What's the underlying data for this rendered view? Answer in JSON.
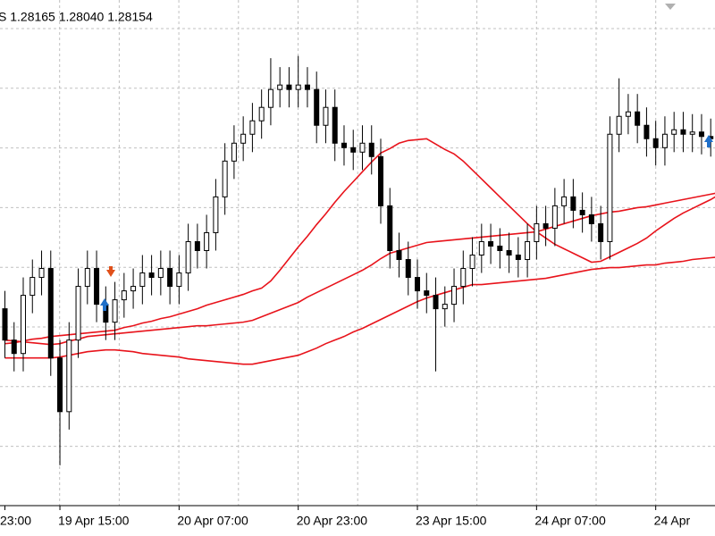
{
  "chart_data": {
    "type": "candlestick",
    "header": "S 1.28165 1.28040 1.28154",
    "ylim": [
      1.2652,
      1.2878
    ],
    "up_color": "#ffffff",
    "down_color": "#000000",
    "outline_color": "#000000",
    "categories": [
      "23:00",
      null,
      null,
      null,
      null,
      null,
      "19 Apr 15:00",
      null,
      null,
      null,
      null,
      null,
      null,
      null,
      null,
      null,
      null,
      null,
      null,
      "20 Apr 07:00",
      null,
      null,
      null,
      null,
      null,
      null,
      null,
      null,
      null,
      null,
      null,
      null,
      "20 Apr 23:00",
      null,
      null,
      null,
      null,
      null,
      null,
      null,
      null,
      null,
      null,
      null,
      null,
      "23 Apr 15:00",
      null,
      null,
      null,
      null,
      null,
      null,
      null,
      null,
      null,
      null,
      null,
      null,
      "24 Apr 07:00",
      null,
      null,
      null,
      null,
      null,
      null,
      null,
      null,
      null,
      null,
      null,
      null,
      "24 Apr",
      null,
      null,
      null,
      null,
      null,
      null,
      null,
      null
    ],
    "open": [
      1.274,
      1.2726,
      1.272,
      1.2746,
      1.2754,
      1.2758,
      1.2718,
      1.2694,
      1.2726,
      1.275,
      1.2758,
      1.2742,
      1.2734,
      1.2744,
      1.2748,
      1.275,
      1.2756,
      1.2754,
      1.2758,
      1.275,
      1.2756,
      1.277,
      1.2766,
      1.2774,
      1.279,
      1.2806,
      1.2814,
      1.2818,
      1.2824,
      1.283,
      1.2838,
      1.284,
      1.2838,
      1.284,
      1.2838,
      1.2822,
      1.283,
      1.2814,
      1.2812,
      1.281,
      1.2814,
      1.2808,
      1.2786,
      1.2766,
      1.2762,
      1.2754,
      1.2748,
      1.2746,
      1.274,
      1.2742,
      1.275,
      1.2758,
      1.2764,
      1.277,
      1.2768,
      1.2766,
      1.2764,
      1.2762,
      1.277,
      1.2778,
      1.2776,
      1.2786,
      1.279,
      1.2784,
      1.2782,
      1.2778,
      1.277,
      1.2818,
      1.2826,
      1.2828,
      1.2822,
      1.2816,
      1.2812,
      1.2818,
      1.282,
      1.2818,
      1.2819,
      1.2817,
      1.2816,
      1.2818
    ],
    "high": [
      1.2748,
      1.2734,
      1.2754,
      1.2762,
      1.2766,
      1.2766,
      1.2726,
      1.2734,
      1.2758,
      1.2766,
      1.2766,
      1.275,
      1.2752,
      1.2756,
      1.2758,
      1.2764,
      1.2764,
      1.2766,
      1.2766,
      1.2764,
      1.2778,
      1.2778,
      1.2782,
      1.2798,
      1.2814,
      1.2822,
      1.2826,
      1.2832,
      1.2838,
      1.2852,
      1.2848,
      1.2848,
      1.2853,
      1.2848,
      1.2846,
      1.2838,
      1.2838,
      1.2822,
      1.282,
      1.2822,
      1.2822,
      1.2816,
      1.2794,
      1.2774,
      1.277,
      1.2762,
      1.2756,
      1.2754,
      1.275,
      1.2758,
      1.2766,
      1.2772,
      1.2778,
      1.2778,
      1.2776,
      1.2774,
      1.2772,
      1.2778,
      1.2786,
      1.2786,
      1.2794,
      1.2798,
      1.2798,
      1.2792,
      1.279,
      1.2786,
      1.2826,
      1.2843,
      1.2836,
      1.2836,
      1.283,
      1.2824,
      1.2826,
      1.2828,
      1.2828,
      1.2827,
      1.2827,
      1.2825,
      1.2826,
      1.28165
    ],
    "low": [
      1.2718,
      1.2712,
      1.2712,
      1.2738,
      1.2746,
      1.271,
      1.267,
      1.2686,
      1.2718,
      1.2742,
      1.2734,
      1.2726,
      1.2726,
      1.2736,
      1.274,
      1.2742,
      1.2746,
      1.2746,
      1.2742,
      1.2742,
      1.2748,
      1.2758,
      1.2758,
      1.2766,
      1.2782,
      1.2798,
      1.2806,
      1.281,
      1.2816,
      1.2822,
      1.283,
      1.283,
      1.283,
      1.283,
      1.2814,
      1.2814,
      1.2806,
      1.2804,
      1.2802,
      1.2802,
      1.28,
      1.2778,
      1.2758,
      1.2754,
      1.2746,
      1.274,
      1.2738,
      1.2712,
      1.2732,
      1.2734,
      1.2742,
      1.275,
      1.2756,
      1.276,
      1.2758,
      1.2756,
      1.2754,
      1.2754,
      1.2762,
      1.2768,
      1.2768,
      1.2778,
      1.2776,
      1.2774,
      1.277,
      1.2762,
      1.2762,
      1.281,
      1.2818,
      1.2814,
      1.2808,
      1.2804,
      1.2804,
      1.281,
      1.281,
      1.281,
      1.2809,
      1.2808,
      1.2808,
      1.2804
    ],
    "close": [
      1.2726,
      1.272,
      1.2746,
      1.2754,
      1.2758,
      1.2718,
      1.2694,
      1.2726,
      1.275,
      1.2758,
      1.2742,
      1.2734,
      1.2744,
      1.2748,
      1.275,
      1.2756,
      1.2754,
      1.2758,
      1.275,
      1.2756,
      1.277,
      1.2766,
      1.2774,
      1.279,
      1.2806,
      1.2814,
      1.2818,
      1.2824,
      1.283,
      1.2838,
      1.284,
      1.2838,
      1.284,
      1.2838,
      1.2822,
      1.283,
      1.2814,
      1.2812,
      1.281,
      1.2814,
      1.2808,
      1.2786,
      1.2766,
      1.2762,
      1.2754,
      1.2748,
      1.2746,
      1.274,
      1.2742,
      1.275,
      1.2758,
      1.2764,
      1.277,
      1.2768,
      1.2766,
      1.2764,
      1.2762,
      1.277,
      1.2778,
      1.2776,
      1.2786,
      1.279,
      1.2784,
      1.2782,
      1.2778,
      1.277,
      1.2818,
      1.2826,
      1.2828,
      1.2822,
      1.2816,
      1.2812,
      1.2818,
      1.282,
      1.2818,
      1.2819,
      1.2817,
      1.2816,
      1.2818,
      1.28154
    ],
    "lines": [
      {
        "color": "#e8131b",
        "values": [
          1.27244,
          1.27248,
          1.27256,
          1.27264,
          1.27268,
          1.27276,
          1.2728,
          1.27284,
          1.27288,
          1.27292,
          1.27296,
          1.273,
          1.27304,
          1.27316,
          1.27324,
          1.27336,
          1.27344,
          1.27356,
          1.27364,
          1.27376,
          1.27388,
          1.274,
          1.27416,
          1.27428,
          1.2744,
          1.27452,
          1.27464,
          1.2748,
          1.27492,
          1.27524,
          1.27572,
          1.27624,
          1.27676,
          1.27724,
          1.27776,
          1.27824,
          1.27876,
          1.27924,
          1.27968,
          1.28012,
          1.28056,
          1.28096,
          1.28116,
          1.2814,
          1.28152,
          1.28156,
          1.2816,
          1.28136,
          1.28112,
          1.28092,
          1.2806,
          1.2802,
          1.2798,
          1.2794,
          1.279,
          1.2786,
          1.2782,
          1.2778,
          1.27744,
          1.27716,
          1.27688,
          1.27668,
          1.27648,
          1.27628,
          1.27608,
          1.27612,
          1.27632,
          1.27652,
          1.27672,
          1.27692,
          1.27716,
          1.27748,
          1.27776,
          1.27804,
          1.27828,
          1.27848,
          1.27868,
          1.27888,
          1.27912,
          1.27932
        ]
      },
      {
        "color": "#e8131b",
        "values": [
          1.2726,
          1.27256,
          1.27252,
          1.27248,
          1.27244,
          1.2724,
          1.27244,
          1.27256,
          1.27264,
          1.27276,
          1.2728,
          1.27284,
          1.27288,
          1.27292,
          1.27296,
          1.273,
          1.27304,
          1.27308,
          1.27312,
          1.27316,
          1.2732,
          1.27324,
          1.27324,
          1.27328,
          1.27332,
          1.27336,
          1.2734,
          1.27348,
          1.27364,
          1.2738,
          1.27396,
          1.27412,
          1.27428,
          1.27452,
          1.27472,
          1.27492,
          1.27512,
          1.27532,
          1.27552,
          1.27572,
          1.27596,
          1.27624,
          1.27648,
          1.2766,
          1.27672,
          1.27684,
          1.27696,
          1.277,
          1.27704,
          1.27708,
          1.27712,
          1.27716,
          1.2772,
          1.27724,
          1.27728,
          1.27732,
          1.27736,
          1.2774,
          1.27744,
          1.27756,
          1.27768,
          1.2778,
          1.27792,
          1.27804,
          1.27816,
          1.27824,
          1.27832,
          1.27836,
          1.27844,
          1.27852,
          1.27856,
          1.27864,
          1.27872,
          1.2788,
          1.27888,
          1.27896,
          1.27904,
          1.27912,
          1.2792,
          1.27928
        ]
      },
      {
        "color": "#e8131b",
        "values": [
          1.2718,
          1.2718,
          1.2718,
          1.2718,
          1.2718,
          1.2718,
          1.27184,
          1.27192,
          1.272,
          1.27208,
          1.27212,
          1.27216,
          1.27216,
          1.27212,
          1.27208,
          1.272,
          1.27196,
          1.27192,
          1.27188,
          1.27184,
          1.27176,
          1.27172,
          1.27168,
          1.27164,
          1.2716,
          1.27156,
          1.27152,
          1.27152,
          1.2716,
          1.27168,
          1.27176,
          1.27184,
          1.27192,
          1.27208,
          1.27224,
          1.27244,
          1.2726,
          1.27276,
          1.27296,
          1.27312,
          1.27332,
          1.27352,
          1.27372,
          1.27392,
          1.27412,
          1.27432,
          1.27448,
          1.2746,
          1.27472,
          1.27484,
          1.27496,
          1.27508,
          1.27508,
          1.27512,
          1.27516,
          1.2752,
          1.27524,
          1.27528,
          1.27532,
          1.27536,
          1.27544,
          1.27552,
          1.2756,
          1.27568,
          1.27576,
          1.2758,
          1.27584,
          1.27584,
          1.27588,
          1.27592,
          1.27596,
          1.27596,
          1.27604,
          1.27608,
          1.27612,
          1.2762,
          1.27624,
          1.27628,
          1.27632,
          1.27636
        ]
      }
    ]
  }
}
